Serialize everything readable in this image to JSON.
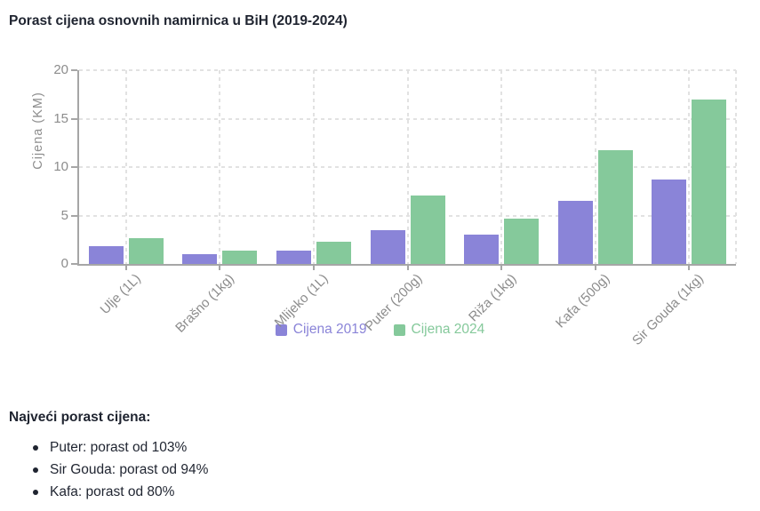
{
  "title": "Porast cijena osnovnih namirnica u BiH (2019-2024)",
  "chart_data": {
    "type": "bar",
    "title": "Porast cijena osnovnih namirnica u BiH (2019-2024)",
    "xlabel": "",
    "ylabel": "Cijena (KM)",
    "ylim": [
      0,
      20
    ],
    "yticks": [
      0,
      5,
      10,
      15,
      20
    ],
    "grid": true,
    "legend_position": "bottom-center",
    "categories": [
      "Ulje (1L)",
      "Brašno (1kg)",
      "Mlijeko (1L)",
      "Puter (200g)",
      "Riža (1kg)",
      "Kafa (500g)",
      "Sir Gouda (1kg)"
    ],
    "series": [
      {
        "name": "Cijena 2019",
        "color": "#8a84d8",
        "values": [
          1.8,
          1.0,
          1.4,
          3.5,
          3.0,
          6.5,
          8.75
        ]
      },
      {
        "name": "Cijena 2024",
        "color": "#85c99b",
        "values": [
          2.7,
          1.4,
          2.3,
          7.1,
          4.7,
          11.7,
          17.0
        ]
      }
    ]
  },
  "highlights": {
    "heading": "Najveći porast cijena:",
    "items": [
      "Puter: porast od 103%",
      "Sir Gouda: porast od 94%",
      "Kafa: porast od 80%"
    ]
  },
  "colors": {
    "series_2019": "#8a84d8",
    "series_2024": "#85c99b",
    "axis": "#a6a6a6",
    "grid": "#e2e2e2",
    "tick_text": "#8c8c8c",
    "text": "#1f2430"
  }
}
